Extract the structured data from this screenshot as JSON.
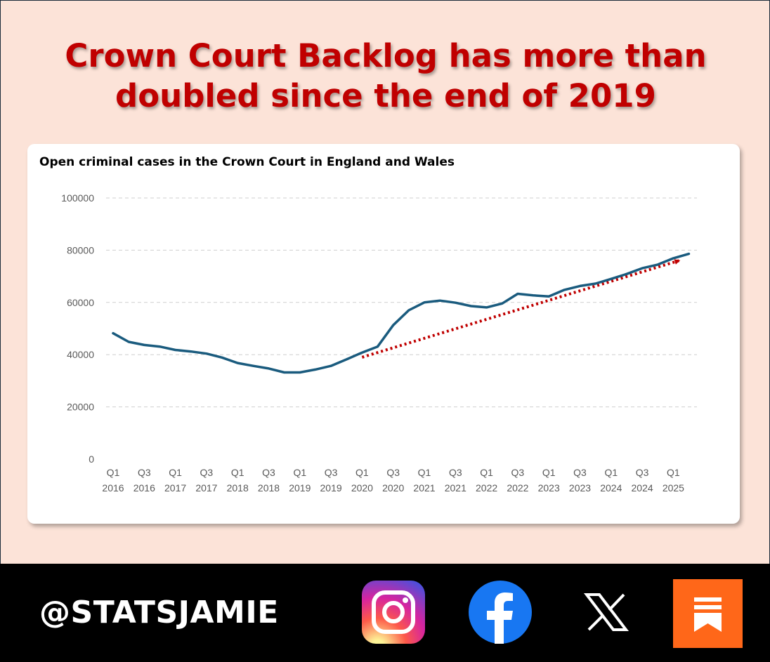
{
  "headline": {
    "line1": "Crown Court Backlog has more than",
    "line2": "doubled since the end of 2019"
  },
  "chart_data": {
    "type": "line",
    "title": "Open criminal cases in the Crown Court in England and Wales",
    "xlabel": "",
    "ylabel": "",
    "ylim": [
      0,
      100000
    ],
    "y_ticks": [
      "0",
      "20000",
      "40000",
      "60000",
      "80000",
      "100000"
    ],
    "x_tick_labels": [
      [
        "Q1",
        "2016"
      ],
      [
        "Q3",
        "2016"
      ],
      [
        "Q1",
        "2017"
      ],
      [
        "Q3",
        "2017"
      ],
      [
        "Q1",
        "2018"
      ],
      [
        "Q3",
        "2018"
      ],
      [
        "Q1",
        "2019"
      ],
      [
        "Q3",
        "2019"
      ],
      [
        "Q1",
        "2020"
      ],
      [
        "Q3",
        "2020"
      ],
      [
        "Q1",
        "2021"
      ],
      [
        "Q3",
        "2021"
      ],
      [
        "Q1",
        "2022"
      ],
      [
        "Q3",
        "2022"
      ],
      [
        "Q1",
        "2023"
      ],
      [
        "Q3",
        "2023"
      ],
      [
        "Q1",
        "2024"
      ],
      [
        "Q3",
        "2024"
      ],
      [
        "Q1",
        "2025"
      ]
    ],
    "grid": true,
    "legend": "none",
    "series": [
      {
        "x": [
          "Q1 2016",
          "Q2 2016",
          "Q3 2016",
          "Q4 2016",
          "Q1 2017",
          "Q2 2017",
          "Q3 2017",
          "Q4 2017",
          "Q1 2018",
          "Q2 2018",
          "Q3 2018",
          "Q4 2018",
          "Q1 2019",
          "Q2 2019",
          "Q3 2019",
          "Q4 2019",
          "Q1 2020",
          "Q2 2020",
          "Q3 2020",
          "Q4 2020",
          "Q1 2021",
          "Q2 2021",
          "Q3 2021",
          "Q4 2021",
          "Q1 2022",
          "Q2 2022",
          "Q3 2022",
          "Q4 2022",
          "Q1 2023",
          "Q2 2023",
          "Q3 2023",
          "Q4 2023",
          "Q1 2024",
          "Q2 2024",
          "Q3 2024",
          "Q4 2024",
          "Q1 2025",
          "Q2 2025"
        ],
        "values": [
          48200,
          44900,
          43700,
          43100,
          41800,
          41200,
          40400,
          38900,
          36800,
          35700,
          34700,
          33200,
          33200,
          34300,
          35700,
          38200,
          40800,
          43100,
          51300,
          57000,
          60000,
          60700,
          59900,
          58600,
          58100,
          59600,
          63300,
          62700,
          62300,
          64800,
          66300,
          67200,
          69000,
          70900,
          73100,
          74500,
          76900,
          78600
        ],
        "color": "#1a5b7e"
      }
    ],
    "trend_arrow": {
      "from": {
        "x": "Q1 2020",
        "y": 39000
      },
      "to": {
        "x": "Q1 2025",
        "y": 76000
      },
      "color": "#c00000",
      "style": "dotted"
    }
  },
  "footer": {
    "handle": "@STATSJAMIE",
    "socials": [
      "instagram-icon",
      "facebook-icon",
      "x-icon",
      "substack-icon"
    ],
    "colors": {
      "facebook": "#1877f2",
      "substack": "#ff6719"
    }
  }
}
